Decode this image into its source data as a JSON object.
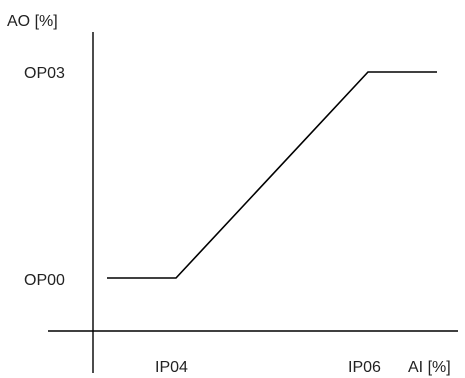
{
  "axes": {
    "y_label": "AO [%]",
    "x_label": "AI [%]"
  },
  "labels": {
    "y_high": "OP03",
    "y_low": "OP00",
    "x_low": "IP04",
    "x_high": "IP06"
  },
  "colors": {
    "line": "#000000",
    "text": "#222222",
    "background": "#ffffff"
  }
}
